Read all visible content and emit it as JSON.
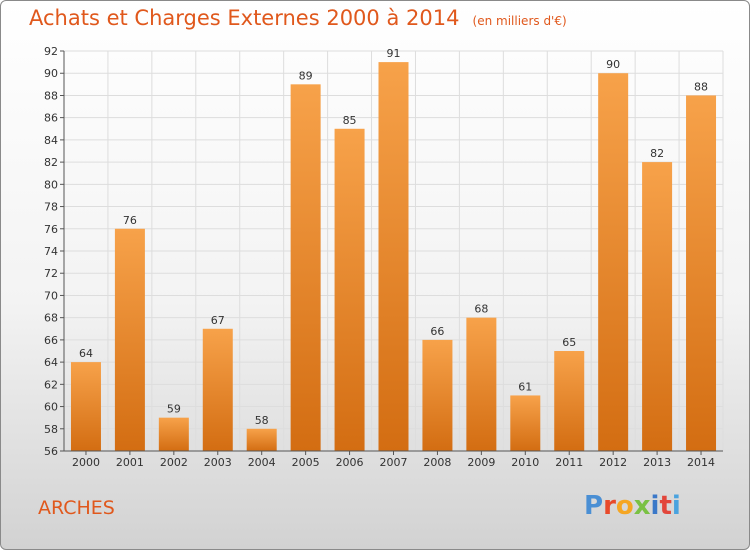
{
  "title": "Achats et Charges Externes 2000 à 2014",
  "subtitle": "(en milliers d'€)",
  "location": "ARCHES",
  "logo": {
    "letters": [
      "P",
      "r",
      "o",
      "x",
      "i",
      "t",
      "i"
    ],
    "colors": [
      "#4a8fd4",
      "#e84a2a",
      "#f5a623",
      "#7ac143",
      "#3b78c8",
      "#e2463b",
      "#4aa3df"
    ]
  },
  "colors": {
    "accent": "#e0581c",
    "bar_top": "#f7a24a",
    "bar_bottom": "#d36d12",
    "grid": "#dddddd"
  },
  "chart_data": {
    "type": "bar",
    "categories": [
      "2000",
      "2001",
      "2002",
      "2003",
      "2004",
      "2005",
      "2006",
      "2007",
      "2008",
      "2009",
      "2010",
      "2011",
      "2012",
      "2013",
      "2014"
    ],
    "values": [
      64,
      76,
      59,
      67,
      58,
      89,
      85,
      91,
      66,
      68,
      61,
      65,
      90,
      82,
      88
    ],
    "ylim": [
      56,
      92
    ],
    "yticks": [
      56,
      58,
      60,
      62,
      64,
      66,
      68,
      70,
      72,
      74,
      76,
      78,
      80,
      82,
      84,
      86,
      88,
      90,
      92
    ],
    "grid": true
  }
}
